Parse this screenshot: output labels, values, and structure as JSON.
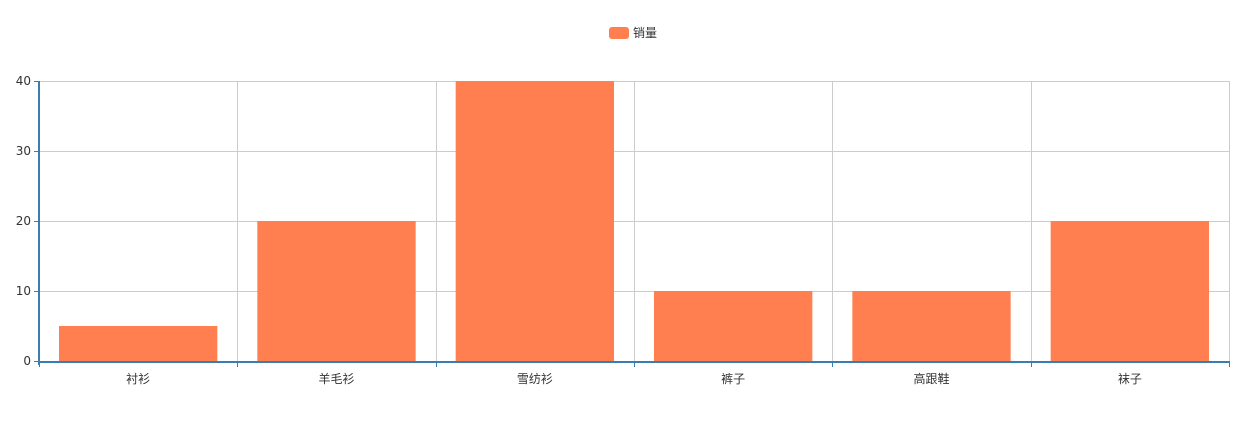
{
  "chart_data": {
    "type": "bar",
    "categories": [
      "衬衫",
      "羊毛衫",
      "雪纺衫",
      "裤子",
      "高跟鞋",
      "袜子"
    ],
    "series": [
      {
        "name": "销量",
        "values": [
          5,
          20,
          40,
          10,
          10,
          20
        ]
      }
    ],
    "ylim": [
      0,
      40
    ],
    "yticks": [
      0,
      10,
      20,
      30,
      40
    ],
    "grid": true,
    "legend_position": "top-center",
    "colors": {
      "bar": "#ff7f50",
      "axis": "#3a7db0",
      "grid": "#cccccc",
      "text": "#333333"
    }
  }
}
